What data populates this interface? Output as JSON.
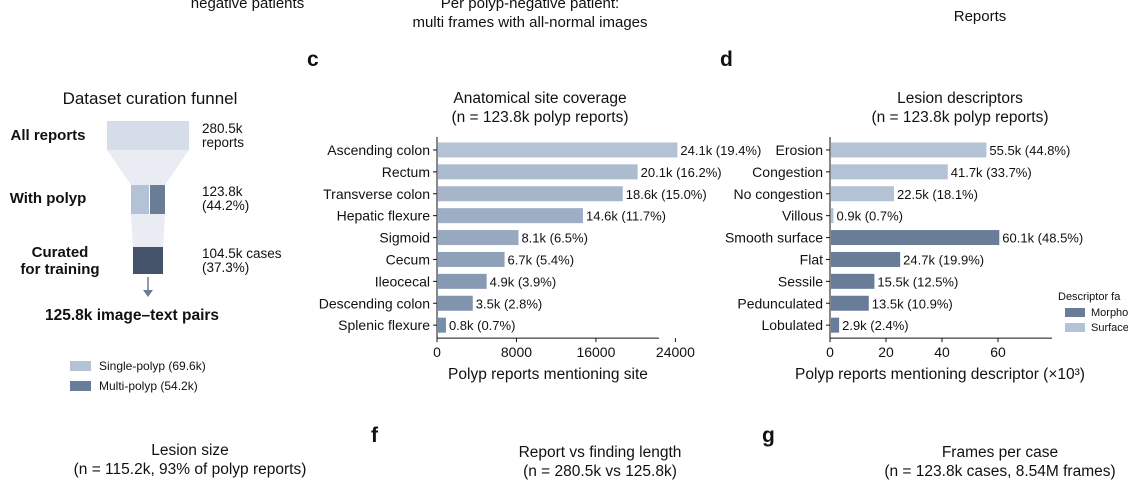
{
  "top": {
    "left_fragment": "negative patients",
    "middle_line1": "Per polyp-negative patient:",
    "middle_line2": "multi frames with all-normal images",
    "right_fragment": "Reports"
  },
  "panel_letters": {
    "c": "c",
    "d": "d",
    "f": "f",
    "g": "g"
  },
  "funnel": {
    "title": "Dataset curation funnel",
    "stages": [
      {
        "label_line1": "All reports",
        "label_line2": "",
        "value_line1": "280.5k",
        "value_line2": "reports"
      },
      {
        "label_line1": "With polyp",
        "label_line2": "",
        "value_line1": "123.8k",
        "value_line2": "(44.2%)"
      },
      {
        "label_line1": "Curated",
        "label_line2": "for training",
        "value_line1": "104.5k cases",
        "value_line2": "(37.3%)"
      }
    ],
    "result": "125.8k image–text pairs",
    "legend": [
      {
        "label": "Single-polyp  (69.6k)",
        "color": "#b4c2d5"
      },
      {
        "label": "Multi-polyp  (54.2k)",
        "color": "#6a7d98"
      }
    ],
    "colors": {
      "top": "#d5dde8",
      "mid_light": "#b4c2d5",
      "mid_dark": "#6a7d98",
      "bottom": "#44536a",
      "funnel_shade": "#e9edf3",
      "arrow": "#6a7d98"
    }
  },
  "chart_data": [
    {
      "type": "bar",
      "orientation": "horizontal",
      "title_line1": "Anatomical site coverage",
      "title_line2": "(n = 123.8k polyp reports)",
      "xlabel": "Polyp reports mentioning site",
      "ylabel": "",
      "categories": [
        "Ascending colon",
        "Rectum",
        "Transverse colon",
        "Hepatic flexure",
        "Sigmoid",
        "Cecum",
        "Ileocecal",
        "Descending colon",
        "Splenic flexure"
      ],
      "values": [
        24100,
        20100,
        18600,
        14600,
        8100,
        6700,
        4900,
        3500,
        800
      ],
      "value_labels": [
        "24.1k  (19.4%)",
        "20.1k  (16.2%)",
        "18.6k  (15.0%)",
        "14.6k  (11.7%)",
        "8.1k  (6.5%)",
        "6.7k  (5.4%)",
        "4.9k  (3.9%)",
        "3.5k  (2.8%)",
        "0.8k  (0.7%)"
      ],
      "colors": [
        "#b4c2d5",
        "#adbbcf",
        "#a6b5ca",
        "#9eaec5",
        "#97a8bf",
        "#8fa1b9",
        "#879ab3",
        "#8094ae",
        "#788da8"
      ],
      "xlim": [
        0,
        30000
      ],
      "xticks": [
        0,
        8000,
        16000,
        24000
      ],
      "xtick_labels": [
        "0",
        "8000",
        "16000",
        "24000"
      ]
    },
    {
      "type": "bar",
      "orientation": "horizontal",
      "title_line1": "Lesion descriptors",
      "title_line2": "(n = 123.8k polyp reports)",
      "xlabel": "Polyp reports mentioning descriptor (×10³)",
      "ylabel": "",
      "categories": [
        "Erosion",
        "Congestion",
        "No congestion",
        "Villous",
        "Smooth surface",
        "Flat",
        "Sessile",
        "Pedunculated",
        "Lobulated"
      ],
      "values": [
        55.5,
        41.7,
        22.5,
        0.9,
        60.1,
        24.7,
        15.5,
        13.5,
        2.9
      ],
      "value_labels": [
        "55.5k  (44.8%)",
        "41.7k  (33.7%)",
        "22.5k  (18.1%)",
        "0.9k  (0.7%)",
        "60.1k  (48.5%)",
        "24.7k  (19.9%)",
        "15.5k  (12.5%)",
        "13.5k  (10.9%)",
        "2.9k  (2.4%)"
      ],
      "groups": [
        "Surface",
        "Surface",
        "Surface",
        "Surface",
        "Morphology",
        "Morphology",
        "Morphology",
        "Morphology",
        "Morphology"
      ],
      "colors": [
        "#b4c2d5",
        "#b4c2d5",
        "#b4c2d5",
        "#b4c2d5",
        "#6a7d98",
        "#6a7d98",
        "#6a7d98",
        "#6a7d98",
        "#6a7d98"
      ],
      "xlim": [
        0,
        80
      ],
      "xticks": [
        0,
        20,
        40,
        60
      ],
      "xtick_labels": [
        "0",
        "20",
        "40",
        "60"
      ],
      "legend": {
        "title": "Descriptor fa",
        "entries": [
          {
            "label": "Morpholo",
            "color": "#6a7d98"
          },
          {
            "label": "Surface",
            "color": "#b4c2d5"
          }
        ],
        "placement": "right, clipped"
      }
    }
  ],
  "bottom": {
    "e_title_line1": "Lesion size",
    "e_title_line2": "(n = 115.2k, 93% of polyp reports)",
    "f_title_line1": "Report vs finding length",
    "f_title_line2": "(n = 280.5k vs 125.8k)",
    "g_title_line1": "Frames per case",
    "g_title_line2": "(n = 123.8k cases, 8.54M frames)"
  }
}
